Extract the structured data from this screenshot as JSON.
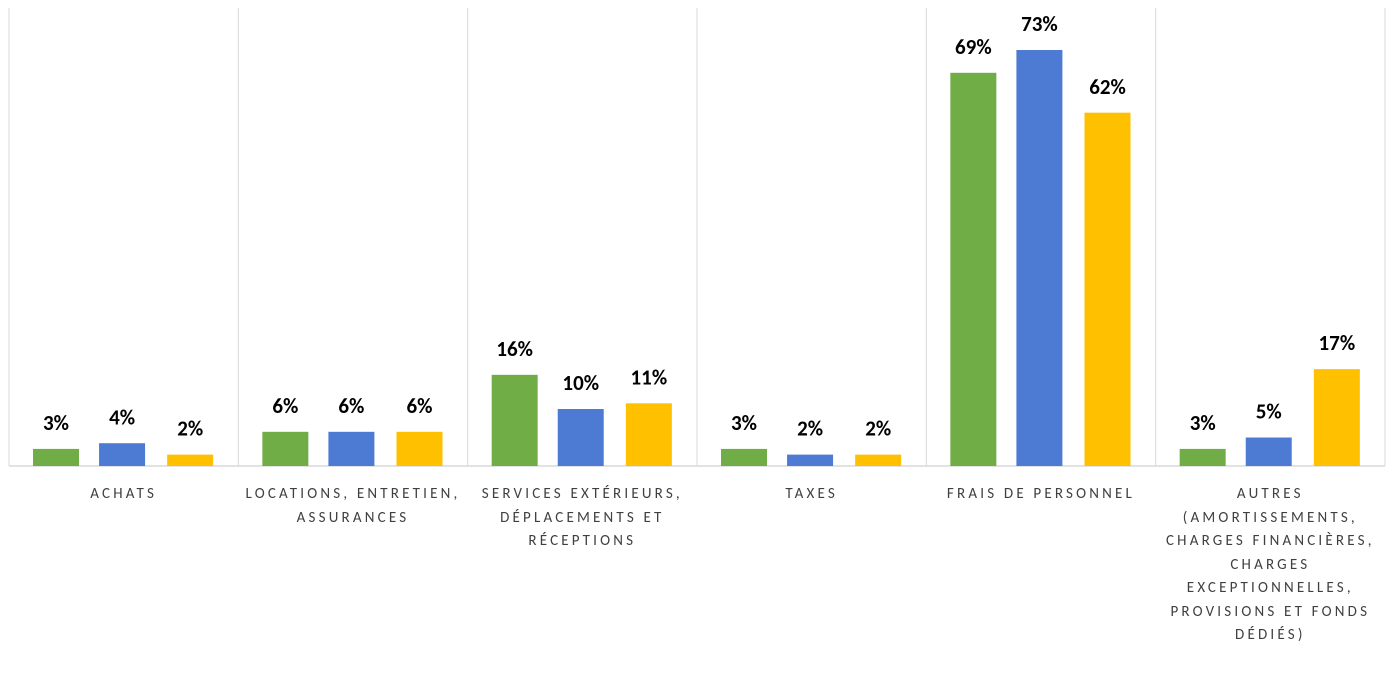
{
  "chart_data": {
    "type": "bar",
    "categories": [
      "ACHATS",
      "LOCATIONS, ENTRETIEN, ASSURANCES",
      "SERVICES EXTÉRIEURS, DÉPLACEMENTS ET RÉCEPTIONS",
      "TAXES",
      "FRAIS DE PERSONNEL",
      "AUTRES (AMORTISSEMENTS, CHARGES FINANCIÈRES, CHARGES EXCEPTIONNELLES, PROVISIONS ET FONDS DÉDIÉS)"
    ],
    "series": [
      {
        "color": "#70ad47",
        "values": [
          3,
          6,
          16,
          3,
          69,
          3
        ],
        "value_labels": [
          "3%",
          "6%",
          "16%",
          "3%",
          "69%",
          "3%"
        ]
      },
      {
        "color": "#4d7bd4",
        "values": [
          4,
          6,
          10,
          2,
          73,
          5
        ],
        "value_labels": [
          "4%",
          "6%",
          "10%",
          "2%",
          "73%",
          "5%"
        ]
      },
      {
        "color": "#ffc000",
        "values": [
          2,
          6,
          11,
          2,
          62,
          17
        ],
        "value_labels": [
          "2%",
          "6%",
          "11%",
          "2%",
          "62%",
          "17%"
        ]
      }
    ]
  }
}
